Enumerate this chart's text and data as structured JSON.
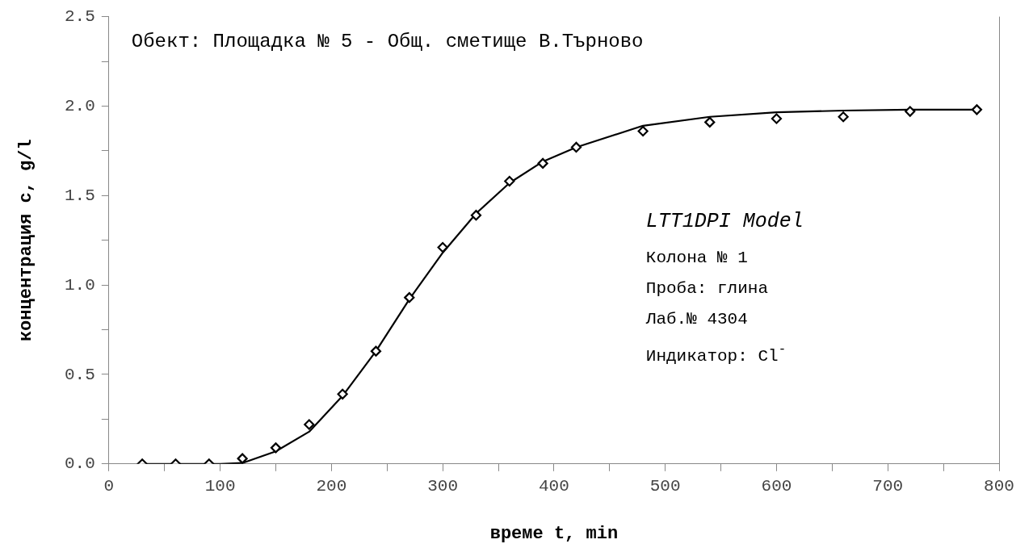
{
  "chart_data": {
    "type": "scatter",
    "xlabel": "време t, min",
    "ylabel": "концентрация c, g/l",
    "annotations": [
      "Обект: Площадка № 5 - Общ. сметище В.Търново",
      "LTT1DPI Model",
      "Колона № 1",
      "Проба: глина",
      "Лаб.№ 4304",
      "Индикатор: Cl$^{-}$"
    ],
    "xlim": [
      0,
      800
    ],
    "ylim": [
      0,
      2.5
    ],
    "xticks": [
      0,
      {
        "value": 50,
        "label": null
      },
      100,
      {
        "value": 150,
        "label": null
      },
      200,
      {
        "value": 250,
        "label": null
      },
      300,
      {
        "value": 350,
        "label": null
      },
      400,
      {
        "value": 450,
        "label": null
      },
      500,
      {
        "value": 550,
        "label": null
      },
      600,
      {
        "value": 650,
        "label": null
      },
      700,
      {
        "value": 750,
        "label": null
      },
      800
    ],
    "yticks": [
      {
        "value": 0,
        "label": "0.0"
      },
      {
        "value": 0.25,
        "label": null
      },
      {
        "value": 0.5,
        "label": "0.5"
      },
      {
        "value": 0.75,
        "label": null
      },
      {
        "value": 1,
        "label": "1.0"
      },
      {
        "value": 1.25,
        "label": null
      },
      {
        "value": 1.5,
        "label": "1.5"
      },
      {
        "value": 1.75,
        "label": null
      },
      {
        "value": 2,
        "label": "2.0"
      },
      {
        "value": 2.25,
        "label": null
      },
      {
        "value": 2.5,
        "label": "2.5"
      }
    ],
    "grid": false,
    "legend": false,
    "series": [
      {
        "type": "line",
        "color": "#000000",
        "marker": "none",
        "line_style": "solid",
        "x": [
          30,
          100,
          120,
          150,
          180,
          210,
          240,
          270,
          300,
          330,
          360,
          390,
          420,
          480,
          540,
          600,
          660,
          720,
          780
        ],
        "values": [
          0,
          0,
          0.005,
          0.07,
          0.18,
          0.38,
          0.63,
          0.92,
          1.18,
          1.4,
          1.57,
          1.69,
          1.77,
          1.89,
          1.94,
          1.965,
          1.975,
          1.98,
          1.98
        ]
      },
      {
        "type": "scatter",
        "color": "#000000",
        "marker": "diamond",
        "x": [
          30,
          60,
          90,
          120,
          150,
          180,
          210,
          240,
          270,
          300,
          330,
          360,
          390,
          420,
          480,
          540,
          600,
          660,
          720,
          780
        ],
        "values": [
          0,
          0,
          0,
          0.03,
          0.09,
          0.22,
          0.39,
          0.63,
          0.93,
          1.21,
          1.39,
          1.58,
          1.68,
          1.77,
          1.86,
          1.91,
          1.93,
          1.94,
          1.97,
          1.98
        ]
      }
    ]
  }
}
